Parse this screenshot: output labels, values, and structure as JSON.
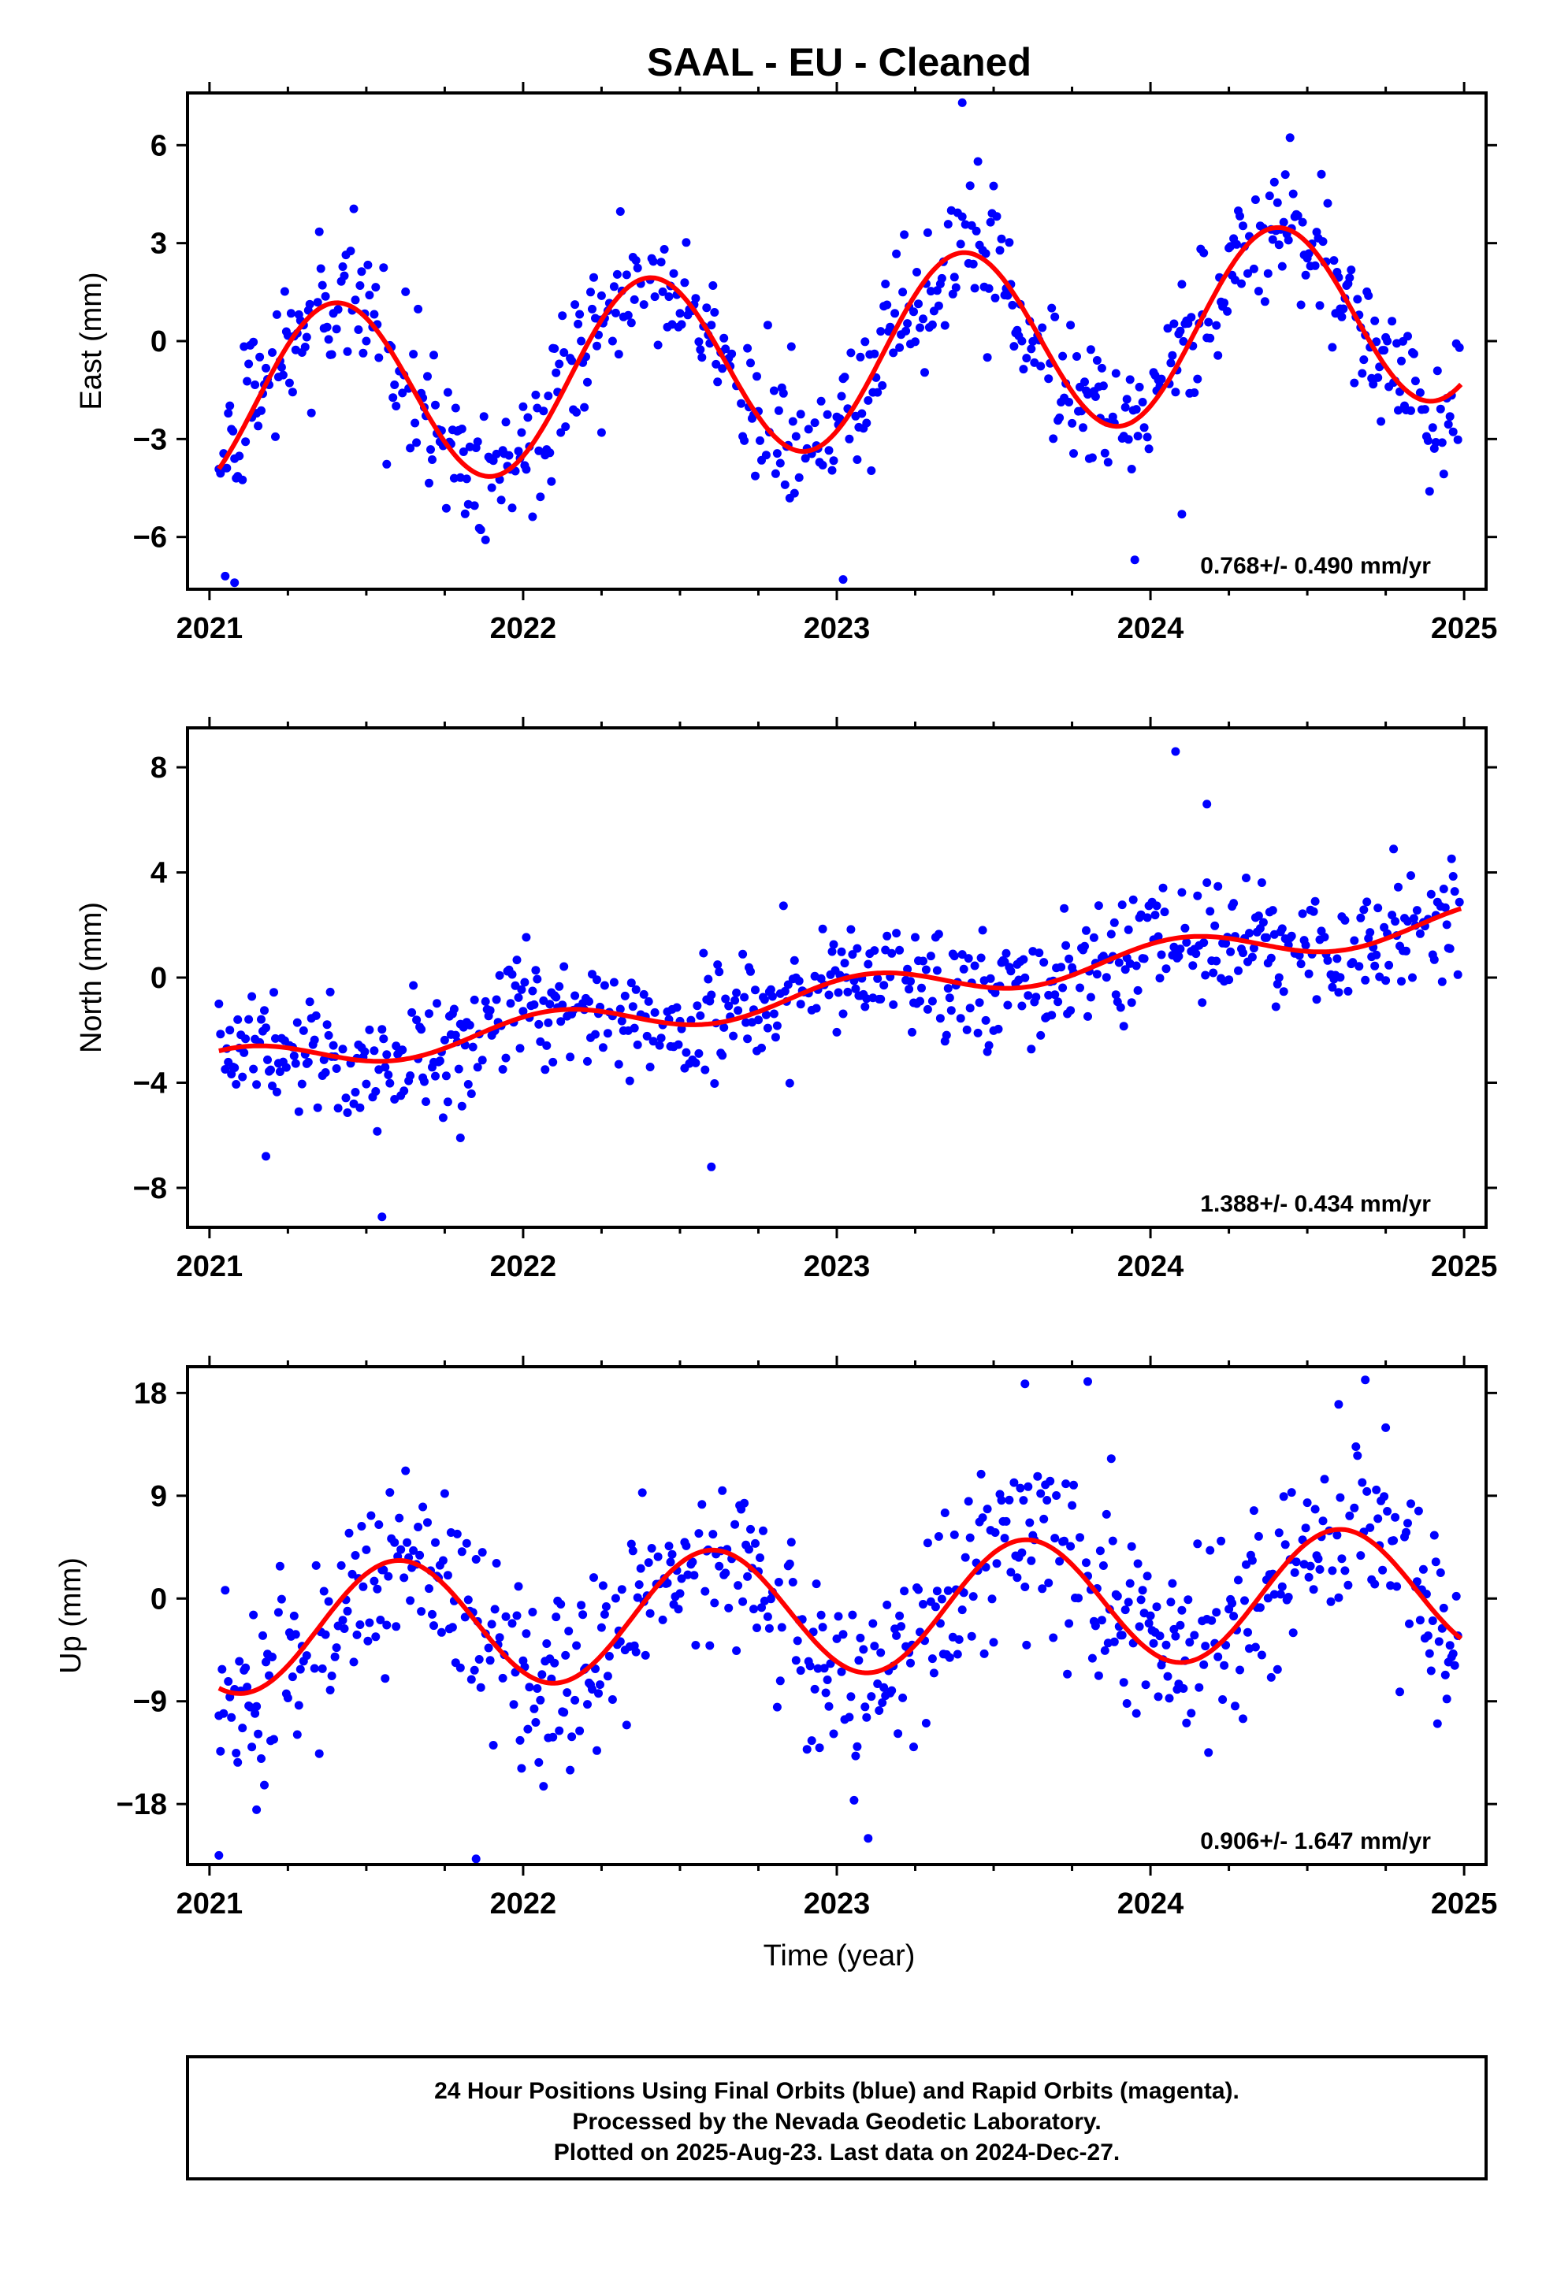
{
  "figure": {
    "title": "SAAL  - EU - Cleaned",
    "xlabel": "Time (year)",
    "footer": [
      "24 Hour Positions Using Final Orbits (blue) and Rapid Orbits (magenta).",
      "Processed by the Nevada Geodetic Laboratory.",
      "Plotted on 2025-Aug-23. Last data on 2024-Dec-27."
    ],
    "colors": {
      "points": "#0000ff",
      "fit": "#ff0000",
      "frame": "#000000"
    }
  },
  "chart_data": [
    {
      "type": "scatter",
      "component": "east",
      "ylabel": "East (mm)",
      "rate": "0.768+/- 0.490 mm/yr",
      "xlim": [
        2020.93,
        2025.07
      ],
      "ylim": [
        -7.6,
        7.6
      ],
      "xticks": [
        2021,
        2022,
        2023,
        2024,
        2025
      ],
      "yticks": [
        -6,
        -3,
        0,
        3,
        6
      ],
      "fit": {
        "trend": 0.768,
        "amp": 2.85,
        "period": 1.0,
        "peak": 2021.4,
        "offset": -0.45,
        "t0": 2023.0
      },
      "noise": 1.05,
      "outliers": [
        [
          2021.05,
          -7.2
        ],
        [
          2021.08,
          -7.4
        ],
        [
          2022.25,
          -2.8
        ],
        [
          2023.02,
          -7.3
        ],
        [
          2023.95,
          -6.7
        ],
        [
          2024.1,
          -5.3
        ],
        [
          2023.4,
          7.3
        ]
      ],
      "series": [
        {
          "name": "Final Orbits",
          "points": []
        },
        {
          "name": "Trend",
          "points": []
        }
      ]
    },
    {
      "type": "scatter",
      "component": "north",
      "ylabel": "North (mm)",
      "rate": "1.388+/- 0.434 mm/yr",
      "xlim": [
        2020.93,
        2025.07
      ],
      "ylim": [
        -9.5,
        9.5
      ],
      "xticks": [
        2021,
        2022,
        2023,
        2024,
        2025
      ],
      "yticks": [
        -8,
        -4,
        0,
        4,
        8
      ],
      "fit": {
        "trend": 1.388,
        "amp": 0.6,
        "period": 1.0,
        "peak": 2022.1,
        "offset": -0.6,
        "t0": 2023.0
      },
      "noise": 1.1,
      "outliers": [
        [
          2021.55,
          -9.1
        ],
        [
          2022.6,
          -7.2
        ],
        [
          2024.08,
          8.6
        ],
        [
          2024.18,
          6.6
        ],
        [
          2021.18,
          -6.8
        ],
        [
          2021.8,
          -6.1
        ]
      ],
      "series": [
        {
          "name": "Final Orbits",
          "points": []
        },
        {
          "name": "Trend",
          "points": []
        }
      ]
    },
    {
      "type": "scatter",
      "component": "up",
      "ylabel": "Up (mm)",
      "rate": "0.906+/- 1.647 mm/yr",
      "xlim": [
        2020.93,
        2025.07
      ],
      "ylim": [
        -23.3,
        20.3
      ],
      "xticks": [
        2021,
        2022,
        2023,
        2024,
        2025
      ],
      "yticks": [
        -18,
        -9,
        0,
        9,
        18
      ],
      "fit": {
        "trend": 0.906,
        "amp": 5.6,
        "period": 1.0,
        "peak": 2021.6,
        "offset": -1.0,
        "t0": 2023.0
      },
      "noise": 4.2,
      "outliers": [
        [
          2021.03,
          -22.5
        ],
        [
          2021.85,
          -22.8
        ],
        [
          2023.1,
          -21.0
        ],
        [
          2023.6,
          18.8
        ],
        [
          2023.8,
          19.0
        ],
        [
          2024.6,
          17.0
        ],
        [
          2021.15,
          -18.5
        ]
      ],
      "series": [
        {
          "name": "Final Orbits",
          "points": []
        },
        {
          "name": "Trend",
          "points": []
        }
      ]
    }
  ]
}
